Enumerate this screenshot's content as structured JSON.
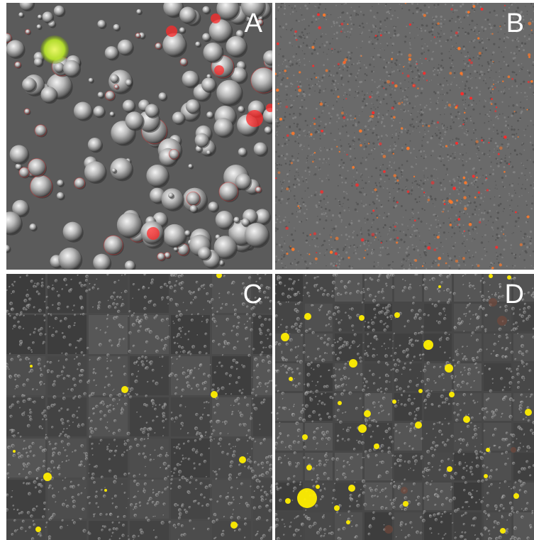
{
  "panels": [
    {
      "id": "A",
      "label": "A"
    },
    {
      "id": "B",
      "label": "B"
    },
    {
      "id": "C",
      "label": "C"
    },
    {
      "id": "D",
      "label": "D"
    }
  ],
  "colors": {
    "background_gray": "#5a5a5a",
    "grid_gray": "#3e3e3e",
    "droplet": "#cfcfcf",
    "red_fluorescence": "#ff2a2a",
    "orange_fluorescence": "#ff7a2a",
    "yellow_fluorescence": "#ffee00",
    "green_fluorescence": "#c8ff3a"
  }
}
